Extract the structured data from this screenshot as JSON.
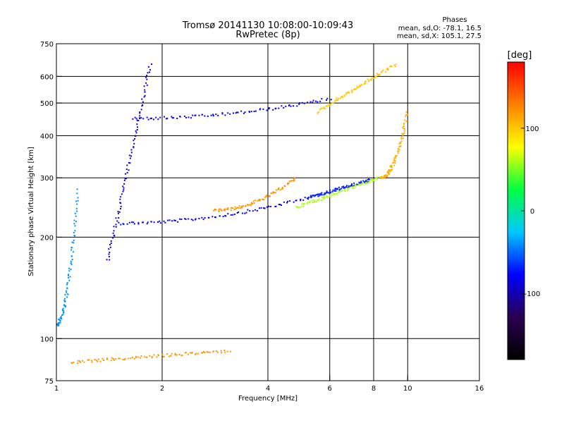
{
  "chart_data": {
    "type": "scatter",
    "title": "Tromsø 20141130 10:08:00-10:09:43",
    "subtitle": "RwPretec (8p)",
    "phase_box": {
      "heading": "Phases",
      "line_o": "mean, sd,O: -78.1, 16.5",
      "line_x": "mean, sd,X: 105.1, 27.5"
    },
    "xlabel": "Frequency [MHz]",
    "ylabel": "Stationary phase Virtual Height [km]",
    "x_scale": "log",
    "y_scale": "log",
    "xlim": [
      1,
      16
    ],
    "ylim": [
      75,
      750
    ],
    "x_ticks": [
      1,
      2,
      4,
      6,
      8,
      10,
      16
    ],
    "y_ticks": [
      75,
      100,
      200,
      300,
      400,
      500,
      600,
      750
    ],
    "x_grid": [
      2,
      4,
      6,
      8,
      10
    ],
    "y_grid": [
      100,
      200,
      300,
      400,
      500,
      600
    ],
    "grid": true,
    "colorbar": {
      "label": "[deg]",
      "range": [
        -180,
        180
      ],
      "ticks": [
        100,
        0,
        -100
      ],
      "stops": [
        "#000000",
        "#2a0050",
        "#0000ff",
        "#00c8ff",
        "#00ff40",
        "#ffff00",
        "#ff8000",
        "#ff0000"
      ]
    },
    "series": [
      {
        "phase": -78,
        "x_range": [
          1.5,
          5.2
        ],
        "y_range": [
          220,
          262
        ]
      },
      {
        "phase": -70,
        "x_range": [
          5.2,
          7.8
        ],
        "y_range": [
          262,
          295
        ]
      },
      {
        "phase": 120,
        "x_range": [
          2.8,
          4.8
        ],
        "y_range": [
          240,
          300
        ]
      },
      {
        "phase": 60,
        "x_range": [
          4.8,
          8.3
        ],
        "y_range": [
          245,
          300
        ]
      },
      {
        "phase": -80,
        "x_range": [
          1.65,
          6.0
        ],
        "y_range": [
          450,
          515
        ]
      },
      {
        "phase": 100,
        "x_range": [
          5.5,
          9.2
        ],
        "y_range": [
          470,
          650
        ]
      },
      {
        "phase": 110,
        "x_range": [
          8.4,
          10.0
        ],
        "y_range": [
          300,
          470
        ]
      },
      {
        "phase": -95,
        "x_range": [
          1.4,
          1.85
        ],
        "y_range": [
          170,
          650
        ]
      },
      {
        "phase": -40,
        "x_range": [
          1.0,
          1.15
        ],
        "y_range": [
          110,
          275
        ]
      },
      {
        "phase": 120,
        "x_range": [
          1.1,
          3.1
        ],
        "y_range": [
          85,
          92
        ]
      }
    ]
  }
}
